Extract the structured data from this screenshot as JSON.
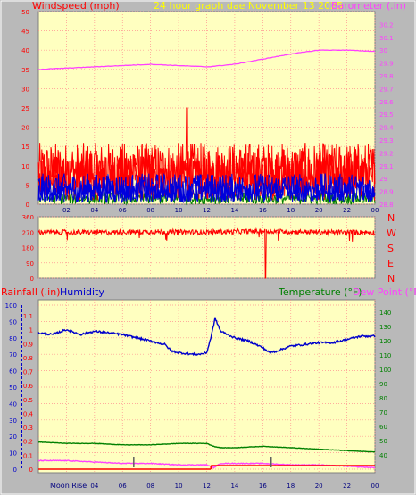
{
  "header": {
    "wind_title": "Windspeed (mph)",
    "date_title": "24 hour graph dae   November 13 2025",
    "baro_title": "Barometer (.in)"
  },
  "direction_labels": [
    "N",
    "W",
    "S",
    "E",
    "N"
  ],
  "bottom_header": {
    "rain_title": "Rainfall (.in)",
    "humidity_title": "Humidity",
    "temp_title": "Temperature (°F)",
    "dew_title": "Dew Point (°F)"
  },
  "moon_label": "Moon Rise",
  "colors": {
    "plot_bg": "#ffffc0",
    "frame_bg": "#c0c0c0",
    "wind_gust": "#ff0000",
    "wind_avg": "#0000dd",
    "wind_low": "#008000",
    "barometer": "#ff40ff",
    "direction": "#ff0000",
    "humidity": "#0000cc",
    "temperature": "#008000",
    "dew_point": "#ff40ff",
    "rainfall": "#ff0000",
    "title_yellow": "#ffff00"
  },
  "chart_data": [
    {
      "type": "line",
      "id": "wind-barometer",
      "title": "Windspeed (mph)",
      "x_tick_labels": [
        "02",
        "04",
        "06",
        "08",
        "10",
        "12",
        "14",
        "16",
        "18",
        "20",
        "22",
        "00"
      ],
      "ylim_left": [
        0,
        50
      ],
      "y_ticks_left": [
        0,
        5,
        10,
        15,
        20,
        25,
        30,
        35,
        40,
        45,
        50
      ],
      "ylim_right": [
        28.8,
        30.3
      ],
      "y_ticks_right": [
        "28.8",
        "28.9",
        "29",
        "29.1",
        "29.2",
        "29.3",
        "29.4",
        "29.5",
        "29.6",
        "29.7",
        "29.8",
        "29.9",
        "30",
        "30.1",
        "30.2"
      ],
      "series": [
        {
          "name": "Barometer (.in)",
          "axis": "right",
          "x": [
            0,
            2,
            4,
            6,
            8,
            10,
            12,
            14,
            16,
            18,
            20,
            22,
            24
          ],
          "y": [
            29.85,
            29.86,
            29.87,
            29.88,
            29.89,
            29.88,
            29.87,
            29.89,
            29.93,
            29.97,
            30.0,
            30.0,
            29.99
          ]
        },
        {
          "name": "gust",
          "axis": "left",
          "band": [
            0,
            18
          ],
          "peak": {
            "x": 10.6,
            "y": 25
          }
        },
        {
          "name": "average",
          "axis": "left",
          "band": [
            0,
            8
          ]
        },
        {
          "name": "low",
          "axis": "left",
          "band": [
            0,
            3
          ]
        }
      ]
    },
    {
      "type": "line",
      "id": "wind-direction",
      "ylim": [
        0,
        360
      ],
      "y_ticks": [
        0,
        90,
        180,
        270,
        360
      ],
      "series": [
        {
          "name": "direction",
          "x": [
            0,
            4,
            8,
            12,
            16,
            20,
            24
          ],
          "y": [
            270,
            268,
            272,
            270,
            275,
            270,
            268
          ],
          "drop": {
            "x": 16.2,
            "y": 0
          }
        }
      ]
    },
    {
      "type": "line",
      "id": "rain-humidity-temp",
      "x_tick_labels": [
        "02",
        "04",
        "06",
        "08",
        "10",
        "12",
        "14",
        "16",
        "18",
        "20",
        "22",
        "00"
      ],
      "ylim_left": [
        0,
        100
      ],
      "y_ticks_left": [
        0,
        10,
        20,
        30,
        40,
        50,
        60,
        70,
        80,
        90,
        100
      ],
      "rain_ticks": [
        "0",
        "0.1",
        "0.2",
        "0.3",
        "0.4",
        "0.5",
        "0.6",
        "0.7",
        "0.8",
        "0.9",
        "1",
        "1.1"
      ],
      "ylim_right": [
        30,
        145
      ],
      "y_ticks_right": [
        40,
        50,
        60,
        70,
        80,
        90,
        100,
        110,
        120,
        130,
        140
      ],
      "series": [
        {
          "name": "Humidity",
          "axis": "left",
          "x": [
            0,
            1,
            2,
            3,
            4,
            5,
            6,
            7,
            8,
            9,
            9.5,
            10,
            11,
            11.5,
            12,
            12.3,
            12.6,
            13,
            14,
            15,
            16,
            16.5,
            17,
            18,
            19,
            20,
            21,
            22,
            23,
            24
          ],
          "y": [
            83,
            82,
            85,
            82,
            84,
            83,
            82,
            80,
            78,
            76,
            72,
            71,
            70,
            70,
            71,
            80,
            92,
            84,
            80,
            78,
            74,
            71,
            72,
            75,
            76,
            77,
            77,
            79,
            81,
            81
          ]
        },
        {
          "name": "Temperature (°F)",
          "axis": "right",
          "x": [
            0,
            2,
            4,
            6,
            8,
            10,
            12,
            12.5,
            13,
            14,
            16,
            18,
            20,
            22,
            24
          ],
          "y": [
            49,
            48,
            48,
            47,
            47,
            48,
            48,
            46,
            45,
            45,
            46,
            45,
            44,
            43,
            42
          ]
        },
        {
          "name": "Dew Point (°F)",
          "axis": "right",
          "x": [
            0,
            2,
            4,
            6,
            8,
            10,
            12,
            12.5,
            13,
            14,
            16,
            18,
            20,
            22,
            24
          ],
          "y": [
            36,
            36,
            35,
            34,
            34,
            33,
            33,
            31,
            34,
            34,
            34,
            33,
            33,
            32,
            31
          ]
        },
        {
          "name": "Rainfall (.in)",
          "axis": "left",
          "x": [
            0,
            12.3,
            12.35,
            24
          ],
          "y": [
            0,
            0,
            1.5,
            1.5
          ]
        }
      ]
    }
  ]
}
